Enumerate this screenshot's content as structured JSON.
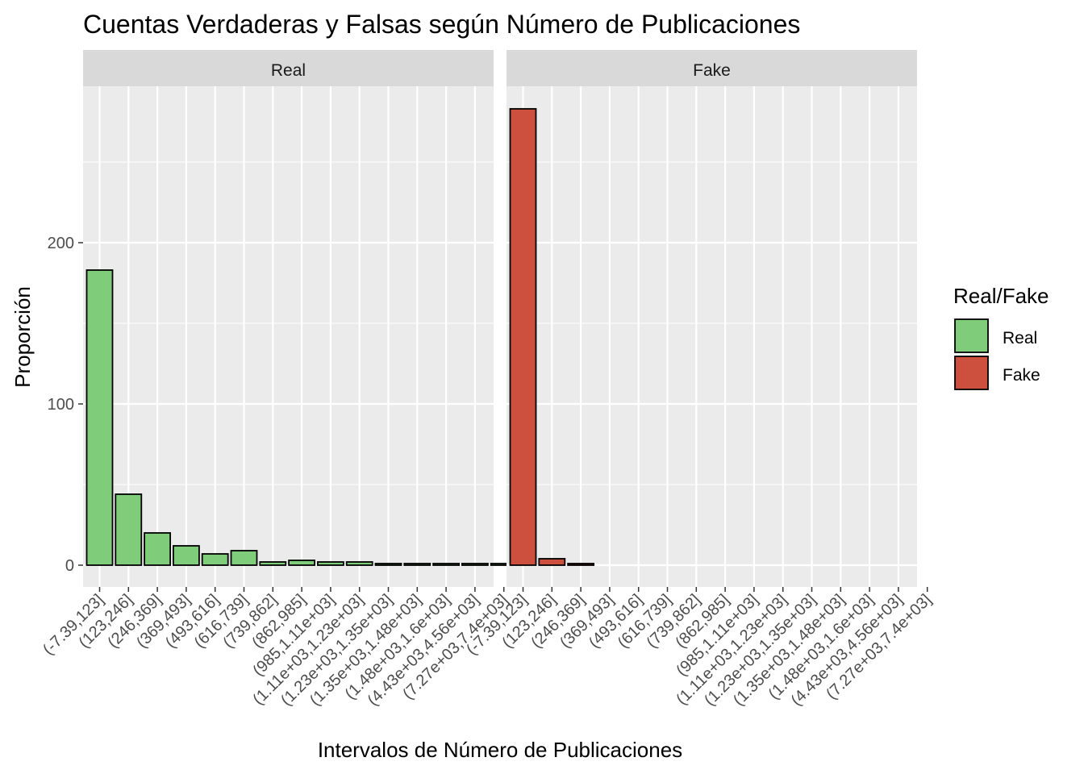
{
  "chart_data": {
    "type": "bar",
    "title": "Cuentas Verdaderas y Falsas según Número de Publicaciones",
    "xlabel": "Intervalos de Número de Publicaciones",
    "ylabel": "Proporción",
    "ylim": [
      -14,
      284
    ],
    "yticks": [
      0,
      100,
      200
    ],
    "grid": true,
    "legend_position": "right",
    "categories": [
      "(-7.39,123]",
      "(123,246]",
      "(246,369]",
      "(369,493]",
      "(493,616]",
      "(616,739]",
      "(739,862]",
      "(862,985]",
      "(985,1.11e+03]",
      "(1.11e+03,1.23e+03]",
      "(1.23e+03,1.35e+03]",
      "(1.35e+03,1.48e+03]",
      "(1.48e+03,1.6e+03]",
      "(4.43e+03,4.56e+03]",
      "(7.27e+03,7.4e+03]"
    ],
    "facets": [
      {
        "label": "Real",
        "series": "Real",
        "values": [
          183,
          44,
          20,
          12,
          7,
          9,
          2,
          3,
          2,
          2,
          1,
          1,
          1,
          1,
          1
        ]
      },
      {
        "label": "Fake",
        "series": "Fake",
        "values": [
          283,
          4,
          1,
          0,
          0,
          0,
          0,
          0,
          0,
          0,
          0,
          0,
          0,
          0,
          0
        ]
      }
    ],
    "legend": {
      "title": "Real/Fake",
      "items": [
        {
          "label": "Real",
          "color": "#7fcd7b"
        },
        {
          "label": "Fake",
          "color": "#cd4f3e"
        }
      ]
    }
  }
}
